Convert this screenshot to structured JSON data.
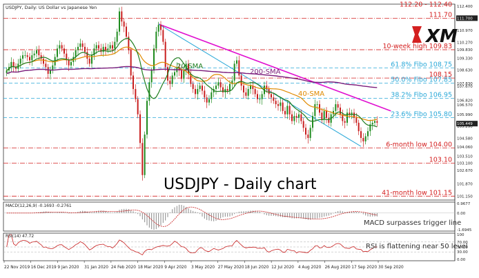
{
  "chart_data": {
    "type": "candlestick",
    "title": "USDJPY - Daily chart",
    "header_label": "USDJPY, Daily: US Dollar vs Japanese Yen",
    "brand": "XM",
    "x_ticks": [
      "22 Nov 2019",
      "16 Dec 2019",
      "9 Jan 2020",
      "31 Jan 2020",
      "24 Feb 2020",
      "18 Mar 2020",
      "9 Apr 2020",
      "3 May 2020",
      "27 May 2020",
      "18 Jun 2020",
      "12 Jul 2020",
      "4 Aug 2020",
      "26 Aug 2020",
      "17 Sep 2020",
      "30 Sep 2020"
    ],
    "price_axis": {
      "ylim": [
        101.0,
        112.45
      ],
      "tick_labels": [
        "112.400",
        "111.700",
        "110.970",
        "110.270",
        "109.830",
        "109.330",
        "108.630",
        "107.830",
        "107.670",
        "106.820",
        "106.570",
        "105.990",
        "105.449",
        "105.290",
        "104.580",
        "104.060",
        "103.510",
        "103.100",
        "102.670",
        "101.870",
        "101.150"
      ],
      "tick_values": [
        112.4,
        111.7,
        110.97,
        110.27,
        109.83,
        109.33,
        108.63,
        107.83,
        107.67,
        106.82,
        106.57,
        105.99,
        105.449,
        105.29,
        104.58,
        104.06,
        103.51,
        103.1,
        102.67,
        101.87,
        101.15
      ]
    },
    "levels": [
      {
        "label": "112.20 - 112.40",
        "value": 112.3,
        "color": "#d42020",
        "style": "none"
      },
      {
        "label": "111.70",
        "value": 111.7,
        "color": "#d42020",
        "style": "dashdot"
      },
      {
        "label": "10-week high 109.83",
        "value": 109.83,
        "color": "#d42020",
        "style": "dashdot"
      },
      {
        "label": "61.8% Fibo 108.75",
        "value": 108.75,
        "color": "#2aa8d8",
        "style": "dash"
      },
      {
        "label": "108.15",
        "value": 108.15,
        "color": "#d42020",
        "style": "dashdot"
      },
      {
        "label": "50.0% Fibo 107.85",
        "value": 107.85,
        "color": "#2aa8d8",
        "style": "dash"
      },
      {
        "label": "38.2% Fibo 106.95",
        "value": 106.95,
        "color": "#2aa8d8",
        "style": "dash"
      },
      {
        "label": "23.6% Fibo 105.80",
        "value": 105.8,
        "color": "#2aa8d8",
        "style": "dash"
      },
      {
        "label": "6-month low 104.00",
        "value": 104.0,
        "color": "#d42020",
        "style": "dashdot"
      },
      {
        "label": "103.10",
        "value": 103.1,
        "color": "#d42020",
        "style": "dashdot"
      },
      {
        "label": "41-month low 101.15",
        "value": 101.15,
        "color": "#d42020",
        "style": "dashdot"
      }
    ],
    "indicator_labels": {
      "sma20": "20-SMA",
      "sma40": "40-SMA",
      "sma200": "200-SMA"
    },
    "indicator_colors": {
      "sma20": "#1e7d1e",
      "sma40": "#e08a00",
      "sma200": "#7a1a7a",
      "trend": "#e010d0",
      "channel": "#2aa8d8"
    },
    "candle_colors": {
      "up": "#1e8b1e",
      "down": "#c81e1e"
    },
    "price_closes": [
      108.6,
      108.8,
      109.1,
      108.8,
      108.7,
      109.0,
      109.3,
      109.5,
      109.5,
      109.4,
      109.2,
      109.5,
      109.6,
      109.8,
      109.5,
      109.3,
      109.0,
      108.8,
      108.4,
      108.6,
      108.9,
      109.4,
      109.9,
      110.1,
      109.9,
      109.6,
      109.2,
      108.9,
      109.1,
      109.4,
      109.8,
      110.0,
      110.2,
      110.0,
      109.7,
      109.3,
      109.0,
      109.5,
      109.9,
      110.1,
      109.9,
      109.7,
      110.0,
      109.8,
      109.9,
      110.1,
      109.9,
      110.3,
      110.9,
      112.1,
      111.5,
      111.2,
      110.6,
      109.8,
      108.3,
      107.5,
      106.9,
      106.0,
      104.3,
      102.4,
      104.8,
      106.8,
      107.9,
      108.6,
      109.9,
      110.9,
      111.3,
      111.0,
      110.3,
      108.8,
      108.0,
      107.8,
      108.3,
      108.5,
      108.8,
      108.6,
      108.1,
      108.6,
      109.0,
      108.4,
      107.8,
      107.5,
      107.2,
      107.5,
      107.7,
      107.4,
      107.0,
      106.7,
      106.9,
      107.3,
      107.5,
      107.7,
      107.9,
      107.6,
      107.3,
      107.5,
      107.4,
      107.8,
      108.0,
      109.0,
      109.2,
      108.3,
      107.7,
      107.3,
      107.1,
      107.5,
      107.7,
      107.5,
      107.2,
      106.9,
      106.9,
      107.2,
      107.7,
      107.5,
      107.2,
      107.0,
      106.8,
      106.6,
      106.5,
      106.7,
      106.2,
      106.0,
      106.5,
      106.0,
      105.6,
      105.9,
      105.8,
      106.0,
      105.6,
      105.2,
      104.8,
      104.6,
      105.2,
      105.9,
      106.6,
      106.6,
      106.1,
      105.7,
      106.2,
      105.8,
      105.5,
      106.0,
      106.2,
      106.6,
      106.4,
      106.0,
      105.6,
      105.5,
      106.1,
      106.0,
      106.1,
      105.8,
      105.5,
      105.0,
      104.6,
      104.4,
      104.7,
      105.0,
      105.4,
      105.5,
      105.6,
      105.5
    ],
    "macd": {
      "label": "MACD(12,26,9) -0.1693 -0.2761",
      "annotation": "MACD surpasses trigger line",
      "ticks": [
        "0.9677",
        "0.00",
        "-1.6945"
      ],
      "ylim": [
        -1.6945,
        0.9677
      ]
    },
    "rsi": {
      "label": "RSI(14) 47.72",
      "annotation": "RSI is flattening near 50 level",
      "ticks": [
        "100",
        "70.00",
        "50.00",
        "30.00",
        "0.00"
      ],
      "ylim": [
        0,
        100
      ]
    }
  }
}
